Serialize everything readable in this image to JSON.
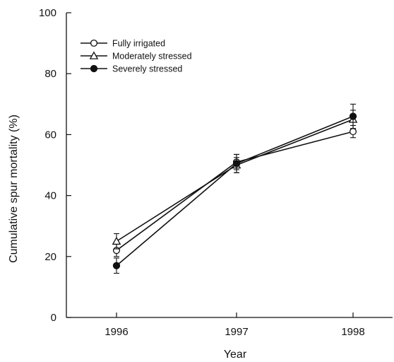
{
  "chart_data": {
    "type": "line",
    "title": "",
    "xlabel": "Year",
    "ylabel": "Cumulative spur mortality (%)",
    "categories": [
      "1996",
      "1997",
      "1998"
    ],
    "yticks": [
      "0",
      "20",
      "40",
      "60",
      "80",
      "100"
    ],
    "ylim": [
      0,
      100
    ],
    "grid": false,
    "legend_position": "top-left",
    "series": [
      {
        "name": "Fully irrigated",
        "marker": "open-circle",
        "values": [
          22,
          51,
          61
        ],
        "errors": [
          2,
          2.5,
          2
        ]
      },
      {
        "name": "Moderately stressed",
        "marker": "open-triangle",
        "values": [
          25,
          50,
          65
        ],
        "errors": [
          2.5,
          2.5,
          3
        ]
      },
      {
        "name": "Severely stressed",
        "marker": "filled-circle",
        "values": [
          17,
          50.5,
          66
        ],
        "errors": [
          2.5,
          3,
          4
        ]
      }
    ]
  }
}
